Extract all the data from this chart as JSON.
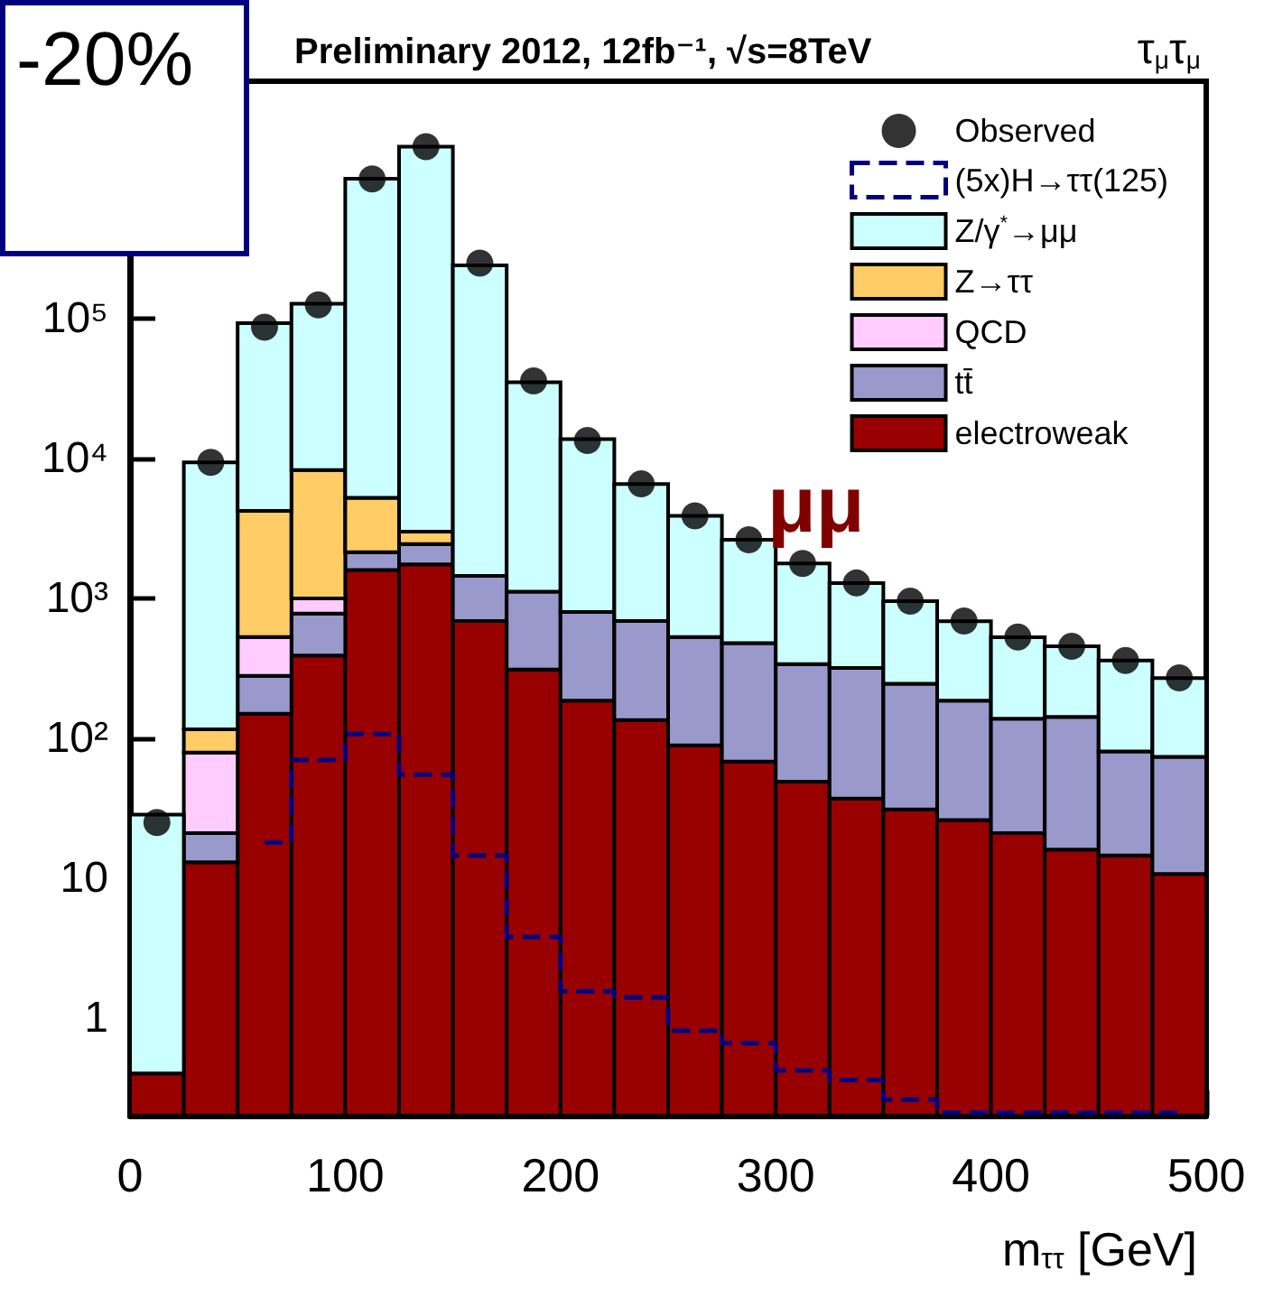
{
  "chart_data": {
    "type": "bar",
    "title": "Preliminary 2012, 12fb⁻¹, √s=8TeV",
    "subtitle": "τ$_{μ}$τ$_{μ}$",
    "xlabel": "m$_{ττ}$ [GeV]",
    "annotations": [
      "-20%",
      "μμ"
    ],
    "x": [
      12.5,
      37.5,
      62.5,
      87.5,
      112.5,
      137.5,
      162.5,
      187.5,
      212.5,
      237.5,
      262.5,
      287.5,
      312.5,
      337.5,
      362.5,
      387.5,
      412.5,
      437.5,
      462.5,
      487.5
    ],
    "stacked": true,
    "log": "y",
    "legend": "top right",
    "xlim": [
      0,
      500
    ],
    "xticks": [
      0,
      100,
      200,
      300,
      400,
      500
    ],
    "ylim": [
      0.2,
      5000000
    ],
    "yticks": [
      1,
      10,
      {
        "value": 100,
        "label": "10²"
      },
      {
        "value": 1000,
        "label": "10³"
      },
      {
        "value": 10000,
        "label": "10⁴"
      },
      {
        "value": 100000,
        "label": "10⁵"
      }
    ],
    "series": [
      {
        "name": "Observed",
        "type": "scatter",
        "marker": "circle",
        "color": "#000000",
        "values": [
          25,
          9400,
          87000,
          126000,
          1000000,
          1700000,
          250000,
          36000,
          13500,
          6600,
          3900,
          2630,
          1780,
          1290,
          955,
          690,
          530,
          455,
          360,
          270
        ]
      },
      {
        "name": "(5x)H→ττ(125)",
        "type": "step",
        "line_style": "dashed",
        "color": "#000080",
        "values": [
          null,
          null,
          18,
          70,
          107,
          55,
          14.5,
          3.8,
          1.55,
          1.4,
          0.81,
          0.66,
          0.42,
          0.36,
          0.26,
          0.21,
          0.21,
          0.21,
          0.21,
          0.21
        ]
      },
      {
        "name": "electroweak",
        "color": "#990000",
        "values": [
          0.4,
          13,
          150,
          390,
          1600,
          1750,
          690,
          310,
          186,
          135,
          89,
          68,
          49,
          37,
          31,
          26,
          21,
          16,
          14.5,
          10.7
        ]
      },
      {
        "name": "tt̄",
        "color": "#9999cc",
        "values": [
          null,
          8,
          130,
          390,
          540,
          700,
          760,
          810,
          614,
          555,
          440,
          412,
          290,
          281,
          214,
          160,
          117,
          126,
          66,
          63
        ]
      },
      {
        "name": "QCD",
        "color": "#ffccff",
        "values": [
          null,
          58,
          250,
          220,
          null,
          null,
          null,
          null,
          null,
          null,
          null,
          null,
          null,
          null,
          null,
          null,
          null,
          null,
          null,
          null
        ]
      },
      {
        "name": "Z→ττ",
        "color": "#ffcc66",
        "values": [
          null,
          37,
          3700,
          7300,
          3100,
          550,
          null,
          null,
          null,
          null,
          null,
          null,
          null,
          null,
          null,
          null,
          null,
          null,
          null,
          null
        ]
      },
      {
        "name": "Z/γ$^{*}$→μμ",
        "color": "#ccffff",
        "values": [
          28,
          9300,
          89000,
          120000,
          1000000,
          1700000,
          240000,
          34000,
          13000,
          5900,
          3370,
          2150,
          1440,
          970,
          710,
          500,
          390,
          313,
          280,
          196
        ]
      }
    ]
  }
}
